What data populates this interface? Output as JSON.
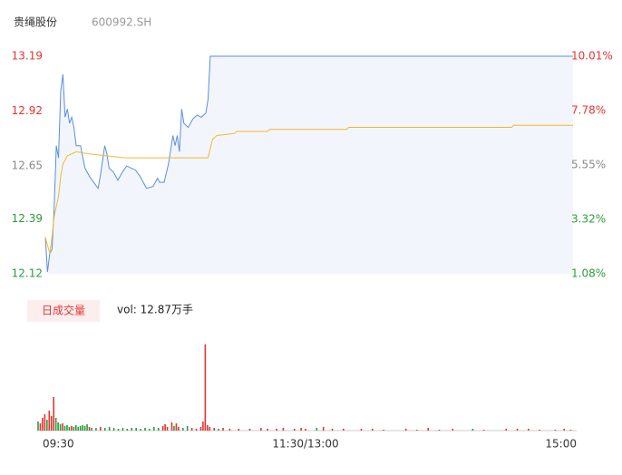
{
  "chart_data": [
    {
      "type": "line",
      "title": "贵绳股份",
      "subtitle": "600992.SH",
      "xlim": [
        0,
        240
      ],
      "ylim": [
        12.12,
        13.19
      ],
      "yticks": [
        13.19,
        12.92,
        12.65,
        12.39,
        12.12
      ],
      "ytick_colors": [
        "#e8322f",
        "#e8322f",
        "#888888",
        "#2a9d3a",
        "#2a9d3a"
      ],
      "y2lim": [
        1.08,
        10.01
      ],
      "y2ticks": [
        {
          "value": 10.01,
          "label": "10.01%"
        },
        {
          "value": 7.78,
          "label": "7.78%"
        },
        {
          "value": 5.55,
          "label": "5.55%"
        },
        {
          "value": 3.32,
          "label": "3.32%"
        },
        {
          "value": 1.08,
          "label": "1.08%"
        }
      ],
      "y2tick_colors": [
        "#e8322f",
        "#e8322f",
        "#888888",
        "#2a9d3a",
        "#2a9d3a"
      ],
      "area_color": "#f2f5fb",
      "series": [
        {
          "color": "#5b8ee0",
          "fill": true,
          "x": [
            0,
            1,
            2,
            3,
            4,
            5,
            6,
            7,
            8,
            9,
            10,
            11,
            12,
            13,
            14,
            16,
            18,
            20,
            22,
            24,
            25,
            27,
            28,
            29,
            31,
            33,
            35,
            37,
            39,
            41,
            43,
            46,
            49,
            51,
            52,
            54,
            56,
            58,
            59,
            60,
            61,
            62,
            63,
            65,
            67,
            69,
            71,
            73,
            74,
            75,
            240
          ],
          "values": [
            12.3,
            12.13,
            12.22,
            12.24,
            12.44,
            12.75,
            12.69,
            13.02,
            13.1,
            12.89,
            12.93,
            12.86,
            12.89,
            12.84,
            12.75,
            12.75,
            12.64,
            12.6,
            12.57,
            12.54,
            12.6,
            12.75,
            12.71,
            12.64,
            12.62,
            12.58,
            12.62,
            12.65,
            12.64,
            12.63,
            12.6,
            12.54,
            12.55,
            12.59,
            12.57,
            12.57,
            12.66,
            12.8,
            12.75,
            12.8,
            12.72,
            12.93,
            12.86,
            12.84,
            12.88,
            12.9,
            12.89,
            12.91,
            12.98,
            13.19,
            13.19
          ]
        },
        {
          "color": "#f5b731",
          "fill": false,
          "x": [
            0,
            2,
            3,
            4,
            6,
            7,
            8,
            10,
            12,
            14,
            20,
            36,
            74,
            76,
            78,
            86,
            87,
            101,
            102,
            137,
            138,
            212,
            213,
            240
          ],
          "values": [
            12.3,
            12.22,
            12.3,
            12.4,
            12.5,
            12.6,
            12.66,
            12.7,
            12.71,
            12.72,
            12.71,
            12.69,
            12.69,
            12.78,
            12.8,
            12.81,
            12.82,
            12.82,
            12.83,
            12.83,
            12.84,
            12.84,
            12.85,
            12.85
          ]
        }
      ]
    },
    {
      "type": "bar",
      "title": "日成交量",
      "annotation": "vol: 12.87万手",
      "xlim": [
        0,
        240
      ],
      "ylim": [
        0,
        95
      ],
      "xticks": [
        {
          "value": 0,
          "label": "09:30"
        },
        {
          "value": 120,
          "label": "11:30/13:00"
        },
        {
          "value": 240,
          "label": "15:00"
        }
      ],
      "x": [
        0,
        1,
        2,
        3,
        4,
        5,
        6,
        7,
        8,
        9,
        10,
        11,
        12,
        13,
        14,
        15,
        16,
        17,
        18,
        19,
        20,
        21,
        22,
        23,
        24,
        26,
        28,
        30,
        32,
        34,
        36,
        38,
        40,
        42,
        44,
        46,
        48,
        50,
        52,
        54,
        56,
        57,
        58,
        60,
        61,
        62,
        63,
        65,
        67,
        69,
        71,
        73,
        74,
        75,
        76,
        77,
        79,
        81,
        83,
        86,
        90,
        95,
        100,
        103,
        107,
        110,
        115,
        118,
        120,
        125,
        128,
        132,
        137,
        145,
        150,
        155,
        165,
        170,
        175,
        180,
        186,
        195,
        200,
        210,
        215,
        220,
        225,
        232,
        236,
        239
      ],
      "values": [
        10,
        8,
        14,
        18,
        12,
        22,
        16,
        37,
        14,
        9,
        7,
        8,
        5,
        6,
        4,
        5,
        4,
        6,
        4,
        5,
        6,
        5,
        7,
        4,
        3,
        3,
        4,
        3,
        4,
        3,
        2,
        3,
        2,
        3,
        3,
        2,
        3,
        2,
        4,
        3,
        5,
        7,
        4,
        9,
        5,
        8,
        4,
        3,
        5,
        3,
        2,
        4,
        10,
        95,
        6,
        4,
        3,
        2,
        3,
        2,
        2,
        2,
        3,
        2,
        2,
        3,
        2,
        3,
        2,
        3,
        4,
        2,
        2,
        2,
        2,
        1,
        2,
        1,
        3,
        1,
        2,
        2,
        1,
        2,
        2,
        2,
        1,
        1,
        2,
        1
      ],
      "colors": [
        "g",
        "r",
        "r",
        "r",
        "g",
        "r",
        "r",
        "r",
        "g",
        "g",
        "g",
        "r",
        "g",
        "g",
        "g",
        "r",
        "g",
        "g",
        "g",
        "g",
        "g",
        "g",
        "g",
        "r",
        "g",
        "g",
        "r",
        "g",
        "g",
        "g",
        "g",
        "g",
        "g",
        "g",
        "g",
        "g",
        "g",
        "g",
        "g",
        "g",
        "r",
        "r",
        "r",
        "r",
        "g",
        "r",
        "r",
        "g",
        "g",
        "r",
        "r",
        "r",
        "r",
        "r",
        "r",
        "r",
        "r",
        "g",
        "r",
        "r",
        "r",
        "r",
        "r",
        "r",
        "r",
        "r",
        "r",
        "r",
        "r",
        "g",
        "r",
        "r",
        "r",
        "r",
        "r",
        "r",
        "r",
        "r",
        "r",
        "r",
        "r",
        "g",
        "r",
        "r",
        "r",
        "r",
        "r",
        "r",
        "r",
        "r"
      ],
      "color_map": {
        "r": "#e8322f",
        "g": "#2a9d3a"
      }
    }
  ]
}
